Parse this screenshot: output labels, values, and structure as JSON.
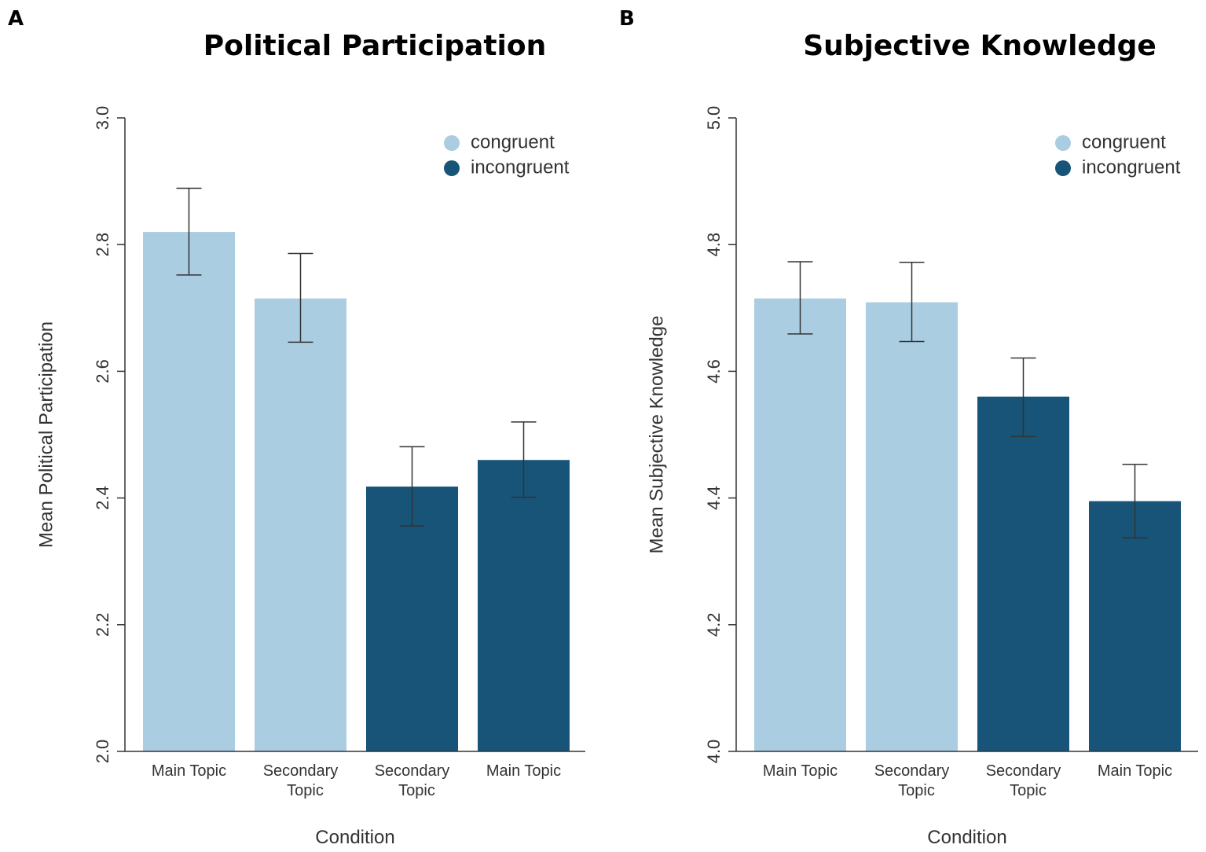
{
  "chart_data": [
    {
      "panel": "A",
      "type": "bar",
      "title": "Political Participation",
      "xlabel": "Condition",
      "ylabel": "Mean Political Participation",
      "ylim": [
        2.0,
        3.0
      ],
      "yticks": [
        "2.0",
        "2.2",
        "2.4",
        "2.6",
        "2.8",
        "3.0"
      ],
      "categories": [
        [
          "Main Topic"
        ],
        [
          "Secondary",
          "Topic"
        ],
        [
          "Secondary",
          "Topic"
        ],
        [
          "Main Topic"
        ]
      ],
      "values": [
        2.82,
        2.715,
        2.418,
        2.46
      ],
      "error_low": [
        2.752,
        2.646,
        2.356,
        2.401
      ],
      "error_high": [
        2.889,
        2.786,
        2.481,
        2.52
      ],
      "groups": [
        "congruent",
        "congruent",
        "incongruent",
        "incongruent"
      ],
      "legend": [
        {
          "label": "congruent",
          "color": "#abcde2"
        },
        {
          "label": "incongruent",
          "color": "#175478"
        }
      ],
      "legend_position": "top-right"
    },
    {
      "panel": "B",
      "type": "bar",
      "title": "Subjective Knowledge",
      "xlabel": "Condition",
      "ylabel": "Mean Subjective Knowledge",
      "ylim": [
        4.0,
        5.0
      ],
      "yticks": [
        "4.0",
        "4.2",
        "4.4",
        "4.6",
        "4.8",
        "5.0"
      ],
      "categories": [
        [
          "Main Topic"
        ],
        [
          "Secondary",
          "Topic"
        ],
        [
          "Secondary",
          "Topic"
        ],
        [
          "Main Topic"
        ]
      ],
      "values": [
        4.715,
        4.709,
        4.56,
        4.395
      ],
      "error_low": [
        4.659,
        4.647,
        4.497,
        4.337
      ],
      "error_high": [
        4.773,
        4.772,
        4.621,
        4.453
      ],
      "groups": [
        "congruent",
        "congruent",
        "incongruent",
        "incongruent"
      ],
      "legend": [
        {
          "label": "congruent",
          "color": "#abcde2"
        },
        {
          "label": "incongruent",
          "color": "#175478"
        }
      ],
      "legend_position": "top-right"
    }
  ]
}
